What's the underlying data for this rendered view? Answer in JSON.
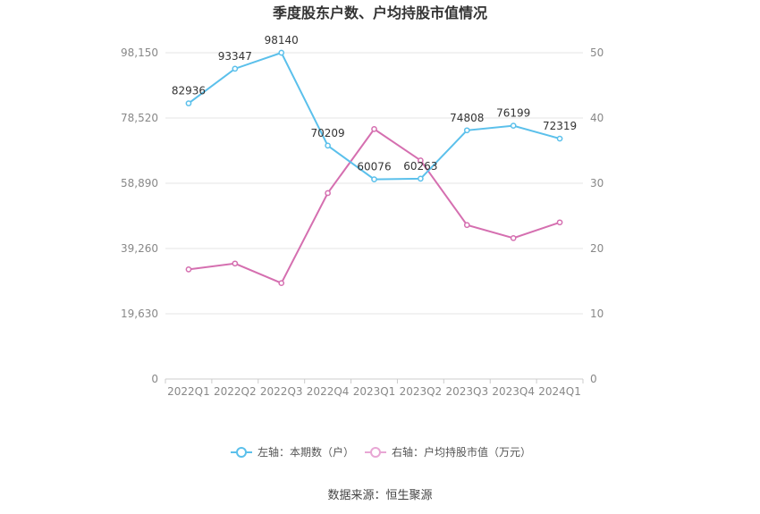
{
  "chart_data": {
    "type": "line",
    "title": "季度股东户数、户均持股市值情况",
    "categories": [
      "2022Q1",
      "2022Q2",
      "2022Q3",
      "2022Q4",
      "2023Q1",
      "2023Q2",
      "2023Q3",
      "2023Q4",
      "2024Q1"
    ],
    "left_axis": {
      "ticks": [
        "0",
        "19,630",
        "39,260",
        "58,890",
        "78,520",
        "98,150"
      ],
      "ylim": [
        0,
        98150
      ]
    },
    "right_axis": {
      "ticks": [
        "0",
        "10",
        "20",
        "30",
        "40",
        "50"
      ],
      "ylim": [
        0,
        50
      ]
    },
    "series": [
      {
        "name": "左轴：本期数（户）",
        "axis": "left",
        "color": "#5bc0eb",
        "values": [
          82936,
          93347,
          98140,
          70209,
          60076,
          60263,
          74808,
          76199,
          72319
        ],
        "labels": [
          "82936",
          "93347",
          "98140",
          "70209",
          "60076",
          "60263",
          "74808",
          "76199",
          "72319"
        ]
      },
      {
        "name": "右轴：户均持股市值（万元）",
        "axis": "right",
        "color": "#d56fb0",
        "values": [
          16.8,
          17.7,
          14.7,
          28.5,
          38.3,
          33.5,
          23.6,
          21.6,
          24.0
        ]
      }
    ],
    "grid": true,
    "legend_position": "bottom"
  },
  "source_text": "数据来源：恒生聚源"
}
